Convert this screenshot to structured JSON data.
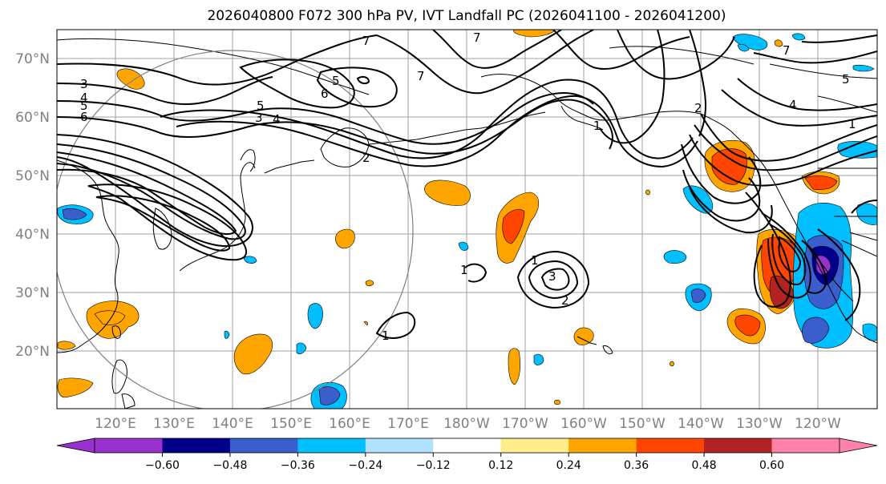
{
  "title": "2026040800 F072 300 hPa PV, IVT Landfall PC (2026041100 - 2026041200)",
  "lat_labels": [
    "70°N",
    "60°N",
    "50°N",
    "40°N",
    "30°N",
    "20°N"
  ],
  "lon_labels": [
    "120°E",
    "130°E",
    "140°E",
    "150°E",
    "160°E",
    "170°E",
    "180°W",
    "170°W",
    "160°W",
    "150°W",
    "140°W",
    "130°W",
    "120°W"
  ],
  "colorbar": {
    "colors": [
      "#9932cc",
      "#00008b",
      "#3a5fcd",
      "#00bfff",
      "#b0e2ff",
      "#ffffff",
      "#ffec8b",
      "#ffa500",
      "#ff4500",
      "#b22222",
      "#ff82ab"
    ],
    "tick_labels": [
      "−0.60",
      "−0.48",
      "−0.36",
      "−0.24",
      "−0.12",
      "0.12",
      "0.24",
      "0.36",
      "0.48",
      "0.60"
    ]
  },
  "contour_labels": [
    "3",
    "4",
    "5",
    "6",
    "5",
    "3",
    "4",
    "6",
    "5",
    "7",
    "7",
    "7",
    "1",
    "1",
    "3",
    "2",
    "1",
    "2",
    "1",
    "5",
    "4",
    "7",
    "2",
    "1"
  ]
}
